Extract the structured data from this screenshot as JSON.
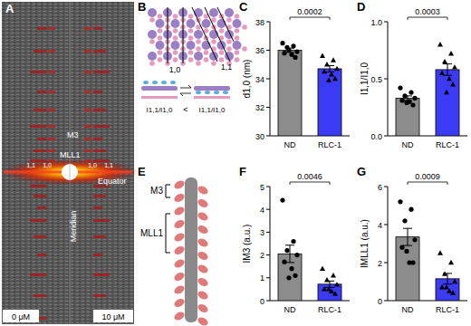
{
  "figure": {
    "panel_a": {
      "panel": "A",
      "m3": "M3",
      "mll1": "MLL1",
      "equator": "Equator",
      "meridian": "Meridian",
      "reflections_left": [
        "1,1",
        "1,0"
      ],
      "reflections_right": [
        "1,0",
        "1,1"
      ],
      "left_condition": "0 μM",
      "right_condition": "10 μM"
    },
    "panel_b": {
      "panel": "B",
      "plane_10": "1,0",
      "plane_11": "1,1",
      "left_ratio": "I1,1/I1,0",
      "relation": "<",
      "right_ratio": "I1,1/I1,0"
    },
    "panel_e": {
      "panel": "E",
      "m3": "M3",
      "mll1": "MLL1"
    }
  },
  "chart_data": [
    {
      "type": "bar",
      "panel": "C",
      "y_label": "d1,0 (nm)",
      "categories": [
        "ND",
        "RLC-1"
      ],
      "values": [
        36.0,
        34.7
      ],
      "errors": [
        0.15,
        0.22
      ],
      "points": [
        [
          36.5,
          36.3,
          36.2,
          35.9,
          35.8,
          35.7,
          35.5,
          36.0
        ],
        [
          35.6,
          35.3,
          35.0,
          34.7,
          34.5,
          34.3,
          34.0,
          33.9
        ]
      ],
      "colors": [
        "#8c8c8c",
        "#3b3bf6"
      ],
      "ylim": [
        30,
        38
      ],
      "yticks": [
        30,
        32,
        34,
        36,
        38
      ],
      "annotations": [
        "0.0002"
      ]
    },
    {
      "type": "bar",
      "panel": "D",
      "y_label": "I1,1/I1,0",
      "categories": [
        "ND",
        "RLC-1"
      ],
      "values": [
        0.33,
        0.58
      ],
      "errors": [
        0.02,
        0.05
      ],
      "points": [
        [
          0.42,
          0.38,
          0.35,
          0.33,
          0.31,
          0.3,
          0.27,
          0.29
        ],
        [
          0.8,
          0.72,
          0.65,
          0.6,
          0.55,
          0.5,
          0.45,
          0.38
        ]
      ],
      "colors": [
        "#8c8c8c",
        "#3b3bf6"
      ],
      "ylim": [
        0,
        1.0
      ],
      "yticks": [
        {
          "value": 0,
          "label": "0.0"
        },
        0.5,
        {
          "value": 1.0,
          "label": "1.0"
        }
      ],
      "annotations": [
        "0.0003"
      ]
    },
    {
      "type": "bar",
      "panel": "F",
      "y_label": "IM3 (a.u.)",
      "categories": [
        "ND",
        "RLC-1"
      ],
      "values": [
        2.05,
        0.72
      ],
      "errors": [
        0.38,
        0.14
      ],
      "points": [
        [
          4.4,
          2.6,
          2.2,
          2.0,
          1.7,
          1.4,
          1.1,
          1.0
        ],
        [
          1.4,
          1.1,
          0.9,
          0.7,
          0.5,
          0.4,
          0.3,
          0.5
        ]
      ],
      "colors": [
        "#8c8c8c",
        "#3b3bf6"
      ],
      "ylim": [
        0,
        5
      ],
      "yticks": [
        0,
        1,
        2,
        3,
        4,
        5
      ],
      "annotations": [
        "0.0046"
      ]
    },
    {
      "type": "bar",
      "panel": "G",
      "y_label": "IMLL1 (a.u.)",
      "categories": [
        "ND",
        "RLC-1"
      ],
      "values": [
        3.35,
        1.15
      ],
      "errors": [
        0.45,
        0.28
      ],
      "points": [
        [
          5.2,
          4.8,
          4.2,
          3.2,
          2.8,
          2.0,
          2.0,
          2.6
        ],
        [
          2.5,
          2.0,
          1.4,
          1.0,
          0.7,
          0.5,
          0.4,
          0.7
        ]
      ],
      "colors": [
        "#8c8c8c",
        "#3b3bf6"
      ],
      "ylim": [
        0,
        6
      ],
      "yticks": [
        0,
        2,
        4,
        6
      ],
      "annotations": [
        "0.0009"
      ]
    }
  ]
}
